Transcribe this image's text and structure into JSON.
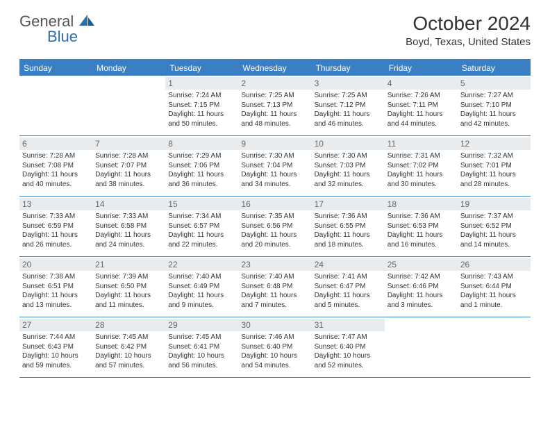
{
  "logo": {
    "part1": "General",
    "part2": "Blue"
  },
  "title": "October 2024",
  "location": "Boyd, Texas, United States",
  "colors": {
    "accent": "#3a7fc4",
    "daynum_bg": "#e8ecef",
    "text": "#333333",
    "logo_gray": "#555555",
    "logo_blue": "#2c6fb0"
  },
  "dow": [
    "Sunday",
    "Monday",
    "Tuesday",
    "Wednesday",
    "Thursday",
    "Friday",
    "Saturday"
  ],
  "weeks": [
    [
      null,
      null,
      {
        "n": "1",
        "sr": "7:24 AM",
        "ss": "7:15 PM",
        "dl": "11 hours and 50 minutes."
      },
      {
        "n": "2",
        "sr": "7:25 AM",
        "ss": "7:13 PM",
        "dl": "11 hours and 48 minutes."
      },
      {
        "n": "3",
        "sr": "7:25 AM",
        "ss": "7:12 PM",
        "dl": "11 hours and 46 minutes."
      },
      {
        "n": "4",
        "sr": "7:26 AM",
        "ss": "7:11 PM",
        "dl": "11 hours and 44 minutes."
      },
      {
        "n": "5",
        "sr": "7:27 AM",
        "ss": "7:10 PM",
        "dl": "11 hours and 42 minutes."
      }
    ],
    [
      {
        "n": "6",
        "sr": "7:28 AM",
        "ss": "7:08 PM",
        "dl": "11 hours and 40 minutes."
      },
      {
        "n": "7",
        "sr": "7:28 AM",
        "ss": "7:07 PM",
        "dl": "11 hours and 38 minutes."
      },
      {
        "n": "8",
        "sr": "7:29 AM",
        "ss": "7:06 PM",
        "dl": "11 hours and 36 minutes."
      },
      {
        "n": "9",
        "sr": "7:30 AM",
        "ss": "7:04 PM",
        "dl": "11 hours and 34 minutes."
      },
      {
        "n": "10",
        "sr": "7:30 AM",
        "ss": "7:03 PM",
        "dl": "11 hours and 32 minutes."
      },
      {
        "n": "11",
        "sr": "7:31 AM",
        "ss": "7:02 PM",
        "dl": "11 hours and 30 minutes."
      },
      {
        "n": "12",
        "sr": "7:32 AM",
        "ss": "7:01 PM",
        "dl": "11 hours and 28 minutes."
      }
    ],
    [
      {
        "n": "13",
        "sr": "7:33 AM",
        "ss": "6:59 PM",
        "dl": "11 hours and 26 minutes."
      },
      {
        "n": "14",
        "sr": "7:33 AM",
        "ss": "6:58 PM",
        "dl": "11 hours and 24 minutes."
      },
      {
        "n": "15",
        "sr": "7:34 AM",
        "ss": "6:57 PM",
        "dl": "11 hours and 22 minutes."
      },
      {
        "n": "16",
        "sr": "7:35 AM",
        "ss": "6:56 PM",
        "dl": "11 hours and 20 minutes."
      },
      {
        "n": "17",
        "sr": "7:36 AM",
        "ss": "6:55 PM",
        "dl": "11 hours and 18 minutes."
      },
      {
        "n": "18",
        "sr": "7:36 AM",
        "ss": "6:53 PM",
        "dl": "11 hours and 16 minutes."
      },
      {
        "n": "19",
        "sr": "7:37 AM",
        "ss": "6:52 PM",
        "dl": "11 hours and 14 minutes."
      }
    ],
    [
      {
        "n": "20",
        "sr": "7:38 AM",
        "ss": "6:51 PM",
        "dl": "11 hours and 13 minutes."
      },
      {
        "n": "21",
        "sr": "7:39 AM",
        "ss": "6:50 PM",
        "dl": "11 hours and 11 minutes."
      },
      {
        "n": "22",
        "sr": "7:40 AM",
        "ss": "6:49 PM",
        "dl": "11 hours and 9 minutes."
      },
      {
        "n": "23",
        "sr": "7:40 AM",
        "ss": "6:48 PM",
        "dl": "11 hours and 7 minutes."
      },
      {
        "n": "24",
        "sr": "7:41 AM",
        "ss": "6:47 PM",
        "dl": "11 hours and 5 minutes."
      },
      {
        "n": "25",
        "sr": "7:42 AM",
        "ss": "6:46 PM",
        "dl": "11 hours and 3 minutes."
      },
      {
        "n": "26",
        "sr": "7:43 AM",
        "ss": "6:44 PM",
        "dl": "11 hours and 1 minute."
      }
    ],
    [
      {
        "n": "27",
        "sr": "7:44 AM",
        "ss": "6:43 PM",
        "dl": "10 hours and 59 minutes."
      },
      {
        "n": "28",
        "sr": "7:45 AM",
        "ss": "6:42 PM",
        "dl": "10 hours and 57 minutes."
      },
      {
        "n": "29",
        "sr": "7:45 AM",
        "ss": "6:41 PM",
        "dl": "10 hours and 56 minutes."
      },
      {
        "n": "30",
        "sr": "7:46 AM",
        "ss": "6:40 PM",
        "dl": "10 hours and 54 minutes."
      },
      {
        "n": "31",
        "sr": "7:47 AM",
        "ss": "6:40 PM",
        "dl": "10 hours and 52 minutes."
      },
      null,
      null
    ]
  ],
  "labels": {
    "sunrise": "Sunrise:",
    "sunset": "Sunset:",
    "daylight": "Daylight:"
  }
}
